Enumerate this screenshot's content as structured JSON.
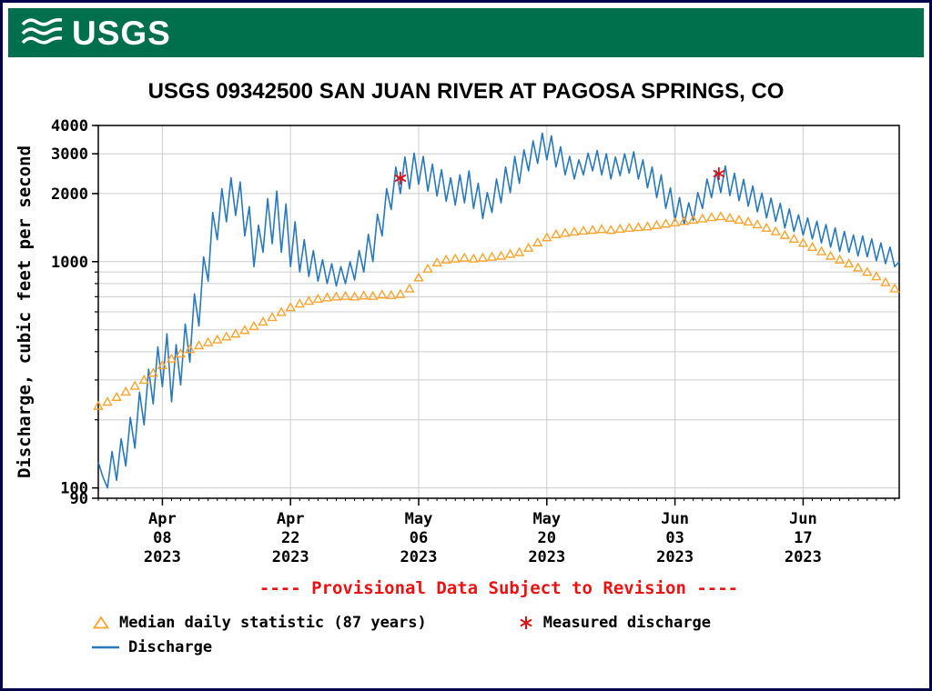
{
  "banner": {
    "logo_text": "USGS"
  },
  "provisional_notice": "---- Provisional Data Subject to Revision ----",
  "legend": {
    "median_label": "Median daily statistic (87 years)",
    "measured_label": "Measured discharge",
    "discharge_label": "Discharge"
  },
  "colors": {
    "banner_green": "#006f4c",
    "discharge_blue": "#2878bd",
    "median_orange": "#ffa32b",
    "measured_red": "#dd1111",
    "provisional_red": "#ee1111",
    "grid_gray": "#cccccc",
    "frame_black": "#000000",
    "page_border_navy": "#00004d"
  },
  "chart_data": {
    "type": "line",
    "title": "USGS 09342500 SAN JUAN RIVER AT PAGOSA SPRINGS, CO",
    "xlabel": "",
    "ylabel": "Discharge, cubic feet per second",
    "y_scale": "log",
    "ylim": [
      90,
      4000
    ],
    "xlim_days": [
      0,
      87.5
    ],
    "x_epoch_note": "day 0 = Apr 01 2023",
    "grid": true,
    "legend_position": "below",
    "x_ticks": [
      {
        "day": 7,
        "label": [
          "Apr",
          "08",
          "2023"
        ]
      },
      {
        "day": 21,
        "label": [
          "Apr",
          "22",
          "2023"
        ]
      },
      {
        "day": 35,
        "label": [
          "May",
          "06",
          "2023"
        ]
      },
      {
        "day": 49,
        "label": [
          "May",
          "20",
          "2023"
        ]
      },
      {
        "day": 63,
        "label": [
          "Jun",
          "03",
          "2023"
        ]
      },
      {
        "day": 77,
        "label": [
          "Jun",
          "17",
          "2023"
        ]
      }
    ],
    "y_ticks": [
      {
        "value": 4000,
        "label": "4000"
      },
      {
        "value": 3000,
        "label": "3000"
      },
      {
        "value": 2000,
        "label": "2000"
      },
      {
        "value": 1000,
        "label": "1000"
      },
      {
        "value": 100,
        "label": "100"
      },
      {
        "value": 90,
        "label": "90"
      }
    ],
    "y_gridlines": [
      100,
      200,
      300,
      400,
      500,
      600,
      700,
      800,
      900,
      1000,
      2000,
      3000,
      4000
    ],
    "series": [
      {
        "name": "Discharge",
        "kind": "line",
        "color": "#2878bd",
        "points": [
          [
            0,
            130
          ],
          [
            0.5,
            112
          ],
          [
            1,
            100
          ],
          [
            1.5,
            145
          ],
          [
            2,
            108
          ],
          [
            2.5,
            165
          ],
          [
            3,
            125
          ],
          [
            3.5,
            205
          ],
          [
            4,
            150
          ],
          [
            4.5,
            265
          ],
          [
            5,
            190
          ],
          [
            5.5,
            335
          ],
          [
            6,
            235
          ],
          [
            6.5,
            420
          ],
          [
            7,
            280
          ],
          [
            7.5,
            480
          ],
          [
            8,
            240
          ],
          [
            8.5,
            430
          ],
          [
            9,
            285
          ],
          [
            9.5,
            530
          ],
          [
            10,
            360
          ],
          [
            10.5,
            720
          ],
          [
            11,
            520
          ],
          [
            11.5,
            1050
          ],
          [
            12,
            820
          ],
          [
            12.5,
            1650
          ],
          [
            13,
            1250
          ],
          [
            13.5,
            2100
          ],
          [
            14,
            1500
          ],
          [
            14.5,
            2350
          ],
          [
            15,
            1600
          ],
          [
            15.5,
            2250
          ],
          [
            16,
            1300
          ],
          [
            16.5,
            1750
          ],
          [
            17,
            950
          ],
          [
            17.5,
            1450
          ],
          [
            18,
            1100
          ],
          [
            18.5,
            1900
          ],
          [
            19,
            1200
          ],
          [
            19.5,
            2050
          ],
          [
            20,
            1100
          ],
          [
            20.5,
            1800
          ],
          [
            21,
            950
          ],
          [
            21.5,
            1500
          ],
          [
            22,
            900
          ],
          [
            22.5,
            1250
          ],
          [
            23,
            860
          ],
          [
            23.5,
            1120
          ],
          [
            24,
            820
          ],
          [
            24.5,
            1020
          ],
          [
            25,
            800
          ],
          [
            25.5,
            980
          ],
          [
            26,
            780
          ],
          [
            26.5,
            950
          ],
          [
            27,
            800
          ],
          [
            27.5,
            1000
          ],
          [
            28,
            830
          ],
          [
            28.5,
            1120
          ],
          [
            29,
            900
          ],
          [
            29.5,
            1320
          ],
          [
            30,
            1000
          ],
          [
            30.5,
            1620
          ],
          [
            31,
            1300
          ],
          [
            31.5,
            2100
          ],
          [
            32,
            1700
          ],
          [
            32.5,
            2620
          ],
          [
            33,
            2000
          ],
          [
            33.5,
            2900
          ],
          [
            34,
            2100
          ],
          [
            34.5,
            3020
          ],
          [
            35,
            2200
          ],
          [
            35.5,
            2920
          ],
          [
            36,
            2050
          ],
          [
            36.5,
            2700
          ],
          [
            37,
            1950
          ],
          [
            37.5,
            2550
          ],
          [
            38,
            1850
          ],
          [
            38.5,
            2350
          ],
          [
            39,
            1780
          ],
          [
            39.5,
            2420
          ],
          [
            40,
            1820
          ],
          [
            40.5,
            2520
          ],
          [
            41,
            1720
          ],
          [
            41.5,
            2220
          ],
          [
            42,
            1550
          ],
          [
            42.5,
            2020
          ],
          [
            43,
            1650
          ],
          [
            43.5,
            2320
          ],
          [
            44,
            1820
          ],
          [
            44.5,
            2620
          ],
          [
            45,
            2020
          ],
          [
            45.5,
            2920
          ],
          [
            46,
            2220
          ],
          [
            46.5,
            3120
          ],
          [
            47,
            2520
          ],
          [
            47.5,
            3420
          ],
          [
            48,
            2720
          ],
          [
            48.5,
            3700
          ],
          [
            49,
            2820
          ],
          [
            49.5,
            3600
          ],
          [
            50,
            2620
          ],
          [
            50.5,
            3220
          ],
          [
            51,
            2420
          ],
          [
            51.5,
            2920
          ],
          [
            52,
            2320
          ],
          [
            52.5,
            2820
          ],
          [
            53,
            2420
          ],
          [
            53.5,
            3020
          ],
          [
            54,
            2520
          ],
          [
            54.5,
            3100
          ],
          [
            55,
            2420
          ],
          [
            55.5,
            3000
          ],
          [
            56,
            2320
          ],
          [
            56.5,
            2900
          ],
          [
            57,
            2400
          ],
          [
            57.5,
            3000
          ],
          [
            58,
            2460
          ],
          [
            58.5,
            3060
          ],
          [
            59,
            2320
          ],
          [
            59.5,
            2820
          ],
          [
            60,
            2120
          ],
          [
            60.5,
            2620
          ],
          [
            61,
            1920
          ],
          [
            61.5,
            2420
          ],
          [
            62,
            1720
          ],
          [
            62.5,
            2120
          ],
          [
            63,
            1520
          ],
          [
            63.5,
            1920
          ],
          [
            64,
            1460
          ],
          [
            64.5,
            1820
          ],
          [
            65,
            1520
          ],
          [
            65.5,
            2020
          ],
          [
            66,
            1720
          ],
          [
            66.5,
            2320
          ],
          [
            67,
            1920
          ],
          [
            67.5,
            2520
          ],
          [
            68,
            2020
          ],
          [
            68.5,
            2650
          ],
          [
            69,
            1960
          ],
          [
            69.5,
            2460
          ],
          [
            70,
            1860
          ],
          [
            70.5,
            2310
          ],
          [
            71,
            1760
          ],
          [
            71.5,
            2160
          ],
          [
            72,
            1660
          ],
          [
            72.5,
            2010
          ],
          [
            73,
            1560
          ],
          [
            73.5,
            1910
          ],
          [
            74,
            1510
          ],
          [
            74.5,
            1810
          ],
          [
            75,
            1410
          ],
          [
            75.5,
            1710
          ],
          [
            76,
            1360
          ],
          [
            76.5,
            1610
          ],
          [
            77,
            1310
          ],
          [
            77.5,
            1560
          ],
          [
            78,
            1260
          ],
          [
            78.5,
            1510
          ],
          [
            79,
            1210
          ],
          [
            79.5,
            1460
          ],
          [
            80,
            1160
          ],
          [
            80.5,
            1410
          ],
          [
            81,
            1110
          ],
          [
            81.5,
            1360
          ],
          [
            82,
            1100
          ],
          [
            82.5,
            1310
          ],
          [
            83,
            1060
          ],
          [
            83.5,
            1300
          ],
          [
            84,
            1050
          ],
          [
            84.5,
            1260
          ],
          [
            85,
            1010
          ],
          [
            85.5,
            1210
          ],
          [
            86,
            980
          ],
          [
            86.5,
            1160
          ],
          [
            87,
            950
          ],
          [
            87.5,
            1000
          ]
        ]
      },
      {
        "name": "Median daily statistic (87 years)",
        "kind": "triangle-markers",
        "color": "#ffa32b",
        "points": [
          [
            0,
            230
          ],
          [
            1,
            240
          ],
          [
            2,
            252
          ],
          [
            3,
            266
          ],
          [
            4,
            282
          ],
          [
            5,
            300
          ],
          [
            6,
            322
          ],
          [
            7,
            348
          ],
          [
            8,
            372
          ],
          [
            9,
            392
          ],
          [
            10,
            410
          ],
          [
            11,
            426
          ],
          [
            12,
            440
          ],
          [
            13,
            452
          ],
          [
            14,
            466
          ],
          [
            15,
            480
          ],
          [
            16,
            498
          ],
          [
            17,
            518
          ],
          [
            18,
            542
          ],
          [
            19,
            568
          ],
          [
            20,
            598
          ],
          [
            21,
            628
          ],
          [
            22,
            652
          ],
          [
            23,
            670
          ],
          [
            24,
            684
          ],
          [
            25,
            694
          ],
          [
            26,
            700
          ],
          [
            27,
            704
          ],
          [
            28,
            700
          ],
          [
            29,
            708
          ],
          [
            30,
            704
          ],
          [
            31,
            714
          ],
          [
            32,
            710
          ],
          [
            33,
            718
          ],
          [
            34,
            760
          ],
          [
            35,
            850
          ],
          [
            36,
            930
          ],
          [
            37,
            990
          ],
          [
            38,
            1020
          ],
          [
            39,
            1030
          ],
          [
            40,
            1040
          ],
          [
            41,
            1030
          ],
          [
            42,
            1040
          ],
          [
            43,
            1050
          ],
          [
            44,
            1060
          ],
          [
            45,
            1080
          ],
          [
            46,
            1100
          ],
          [
            47,
            1150
          ],
          [
            48,
            1215
          ],
          [
            49,
            1280
          ],
          [
            50,
            1320
          ],
          [
            51,
            1340
          ],
          [
            52,
            1355
          ],
          [
            53,
            1370
          ],
          [
            54,
            1380
          ],
          [
            55,
            1390
          ],
          [
            56,
            1380
          ],
          [
            57,
            1395
          ],
          [
            58,
            1410
          ],
          [
            59,
            1420
          ],
          [
            60,
            1430
          ],
          [
            61,
            1450
          ],
          [
            62,
            1470
          ],
          [
            63,
            1490
          ],
          [
            64,
            1510
          ],
          [
            65,
            1530
          ],
          [
            66,
            1550
          ],
          [
            67,
            1570
          ],
          [
            68,
            1585
          ],
          [
            69,
            1560
          ],
          [
            70,
            1530
          ],
          [
            71,
            1500
          ],
          [
            72,
            1460
          ],
          [
            73,
            1410
          ],
          [
            74,
            1360
          ],
          [
            75,
            1310
          ],
          [
            76,
            1260
          ],
          [
            77,
            1210
          ],
          [
            78,
            1160
          ],
          [
            79,
            1110
          ],
          [
            80,
            1060
          ],
          [
            81,
            1020
          ],
          [
            82,
            980
          ],
          [
            83,
            940
          ],
          [
            84,
            900
          ],
          [
            85,
            860
          ],
          [
            86,
            810
          ],
          [
            87,
            760
          ]
        ]
      },
      {
        "name": "Measured discharge",
        "kind": "asterisk-markers",
        "color": "#dd1111",
        "points": [
          [
            33,
            2340
          ],
          [
            67.8,
            2450
          ]
        ]
      }
    ]
  }
}
